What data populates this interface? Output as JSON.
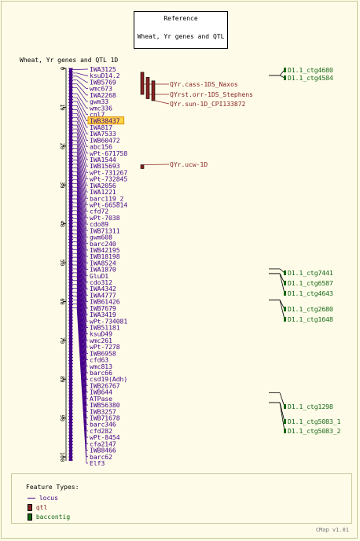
{
  "reference": {
    "title": "Reference",
    "map_name": "Wheat, Yr genes and QTL"
  },
  "map_title": "Wheat, Yr genes and QTL 1D",
  "axis": {
    "min": 0,
    "max": 101,
    "ticks": [
      0,
      10,
      20,
      30,
      40,
      50,
      60,
      70,
      80,
      90,
      100
    ]
  },
  "loci": [
    {
      "name": "IWA3125",
      "pos": 0.3
    },
    {
      "name": "ksuD14.2",
      "pos": 1.2
    },
    {
      "name": "IWB5769",
      "pos": 2.0
    },
    {
      "name": "wmc673",
      "pos": 3.0
    },
    {
      "name": "IWA2268",
      "pos": 4.0
    },
    {
      "name": "gwm33",
      "pos": 5.0
    },
    {
      "name": "wmc336",
      "pos": 6.5
    },
    {
      "name": "cnl7",
      "pos": 7.5
    },
    {
      "name": "IWB38437",
      "pos": 8.5,
      "highlight": true
    },
    {
      "name": "IWA817",
      "pos": 9.6
    },
    {
      "name": "IWA7533",
      "pos": 10.6
    },
    {
      "name": "IWB60472",
      "pos": 11.6
    },
    {
      "name": "abc156",
      "pos": 12.6
    },
    {
      "name": "wPt-671758",
      "pos": 13.6
    },
    {
      "name": "IWA1544",
      "pos": 14.6
    },
    {
      "name": "IWB15693",
      "pos": 15.6
    },
    {
      "name": "wPt-731267",
      "pos": 16.6
    },
    {
      "name": "wPt-732845",
      "pos": 17.6
    },
    {
      "name": "IWA2056",
      "pos": 18.6
    },
    {
      "name": "IWA1221",
      "pos": 19.6
    },
    {
      "name": "barc119_2",
      "pos": 20.6
    },
    {
      "name": "wPt-665814",
      "pos": 21.6
    },
    {
      "name": "cfd72",
      "pos": 22.6
    },
    {
      "name": "wPt-7038",
      "pos": 23.6
    },
    {
      "name": "cdo89",
      "pos": 24.6
    },
    {
      "name": "IWB71311",
      "pos": 25.6
    },
    {
      "name": "gwm608",
      "pos": 26.6
    },
    {
      "name": "barc240",
      "pos": 27.6
    },
    {
      "name": "IWB42195",
      "pos": 28.6
    },
    {
      "name": "IWB18198",
      "pos": 29.6
    },
    {
      "name": "IWA8524",
      "pos": 30.6
    },
    {
      "name": "IWA1870",
      "pos": 31.6
    },
    {
      "name": "GluD1",
      "pos": 32.6
    },
    {
      "name": "cdo312",
      "pos": 33.6
    },
    {
      "name": "IWA4342",
      "pos": 34.6
    },
    {
      "name": "IWA4777",
      "pos": 35.6
    },
    {
      "name": "IWB61426",
      "pos": 36.6
    },
    {
      "name": "IWB7679",
      "pos": 37.6
    },
    {
      "name": "IWA3419",
      "pos": 38.6
    },
    {
      "name": "wPt-734081",
      "pos": 39.6
    },
    {
      "name": "IWB51181",
      "pos": 40.6
    },
    {
      "name": "ksuD49",
      "pos": 41.6
    },
    {
      "name": "wmc261",
      "pos": 42.6
    },
    {
      "name": "wPt-7278",
      "pos": 43.6
    },
    {
      "name": "IWB6958",
      "pos": 44.6
    },
    {
      "name": "cfd63",
      "pos": 45.6
    },
    {
      "name": "wmc813",
      "pos": 46.6
    },
    {
      "name": "barc66",
      "pos": 47.6
    },
    {
      "name": "csd19(Adh)",
      "pos": 48.6
    },
    {
      "name": "IWB26767",
      "pos": 49.6
    },
    {
      "name": "IWB644",
      "pos": 50.6
    },
    {
      "name": "ATPase",
      "pos": 51.6
    },
    {
      "name": "IWB56380",
      "pos": 52.6
    },
    {
      "name": "IWB3257",
      "pos": 53.6
    },
    {
      "name": "IWB71678",
      "pos": 54.6
    },
    {
      "name": "barc346",
      "pos": 55.6
    },
    {
      "name": "cfd282",
      "pos": 56.6
    },
    {
      "name": "wPt-8454",
      "pos": 57.6
    },
    {
      "name": "cfa2147",
      "pos": 58.6
    },
    {
      "name": "IWB8466",
      "pos": 59.6
    },
    {
      "name": "barc62",
      "pos": 60.6
    },
    {
      "name": "Elf3",
      "pos": 61.6
    }
  ],
  "qtls": [
    {
      "name": "QYr.cass-1DS_Naxos",
      "start": 1.0,
      "end": 6.7
    },
    {
      "name": "QYrst.orr-1DS_Stephens",
      "start": 2.3,
      "end": 7.8
    },
    {
      "name": "QYr.sun-1D_CPI133872",
      "start": 3.2,
      "end": 8.3
    },
    {
      "name": "QYr.ucw-1D",
      "start": 24.8,
      "end": 25.8
    }
  ],
  "contigs": [
    {
      "name": "D1.1_ctg4680",
      "anchor": 1.8
    },
    {
      "name": "D1.1_ctg4584",
      "anchor": 1.8
    },
    {
      "name": "D1.1_ctg7441",
      "anchor": 51.6
    },
    {
      "name": "D1.1_ctg6587",
      "anchor": 52.8
    },
    {
      "name": "D1.1_ctg4643",
      "anchor": 52.8
    },
    {
      "name": "D1.1_ctg2680",
      "anchor": 59.6
    },
    {
      "name": "D1.1_ctg1648",
      "anchor": 59.6
    },
    {
      "name": "D1.1_ctg1298",
      "anchor": 83.5
    },
    {
      "name": "D1.1_ctg5083_1",
      "anchor": 86.0
    },
    {
      "name": "D1.1_ctg5083_2",
      "anchor": 86.0
    }
  ],
  "legend": {
    "title": "Feature Types:",
    "locus_label": "locus",
    "qtl_label": "qtl",
    "contig_label": "baccontig"
  },
  "colors": {
    "locus": "#440088",
    "qtl": "#882222",
    "contig": "#116611",
    "highlight": "#ffd54a"
  },
  "footer": "CMap v1.01"
}
